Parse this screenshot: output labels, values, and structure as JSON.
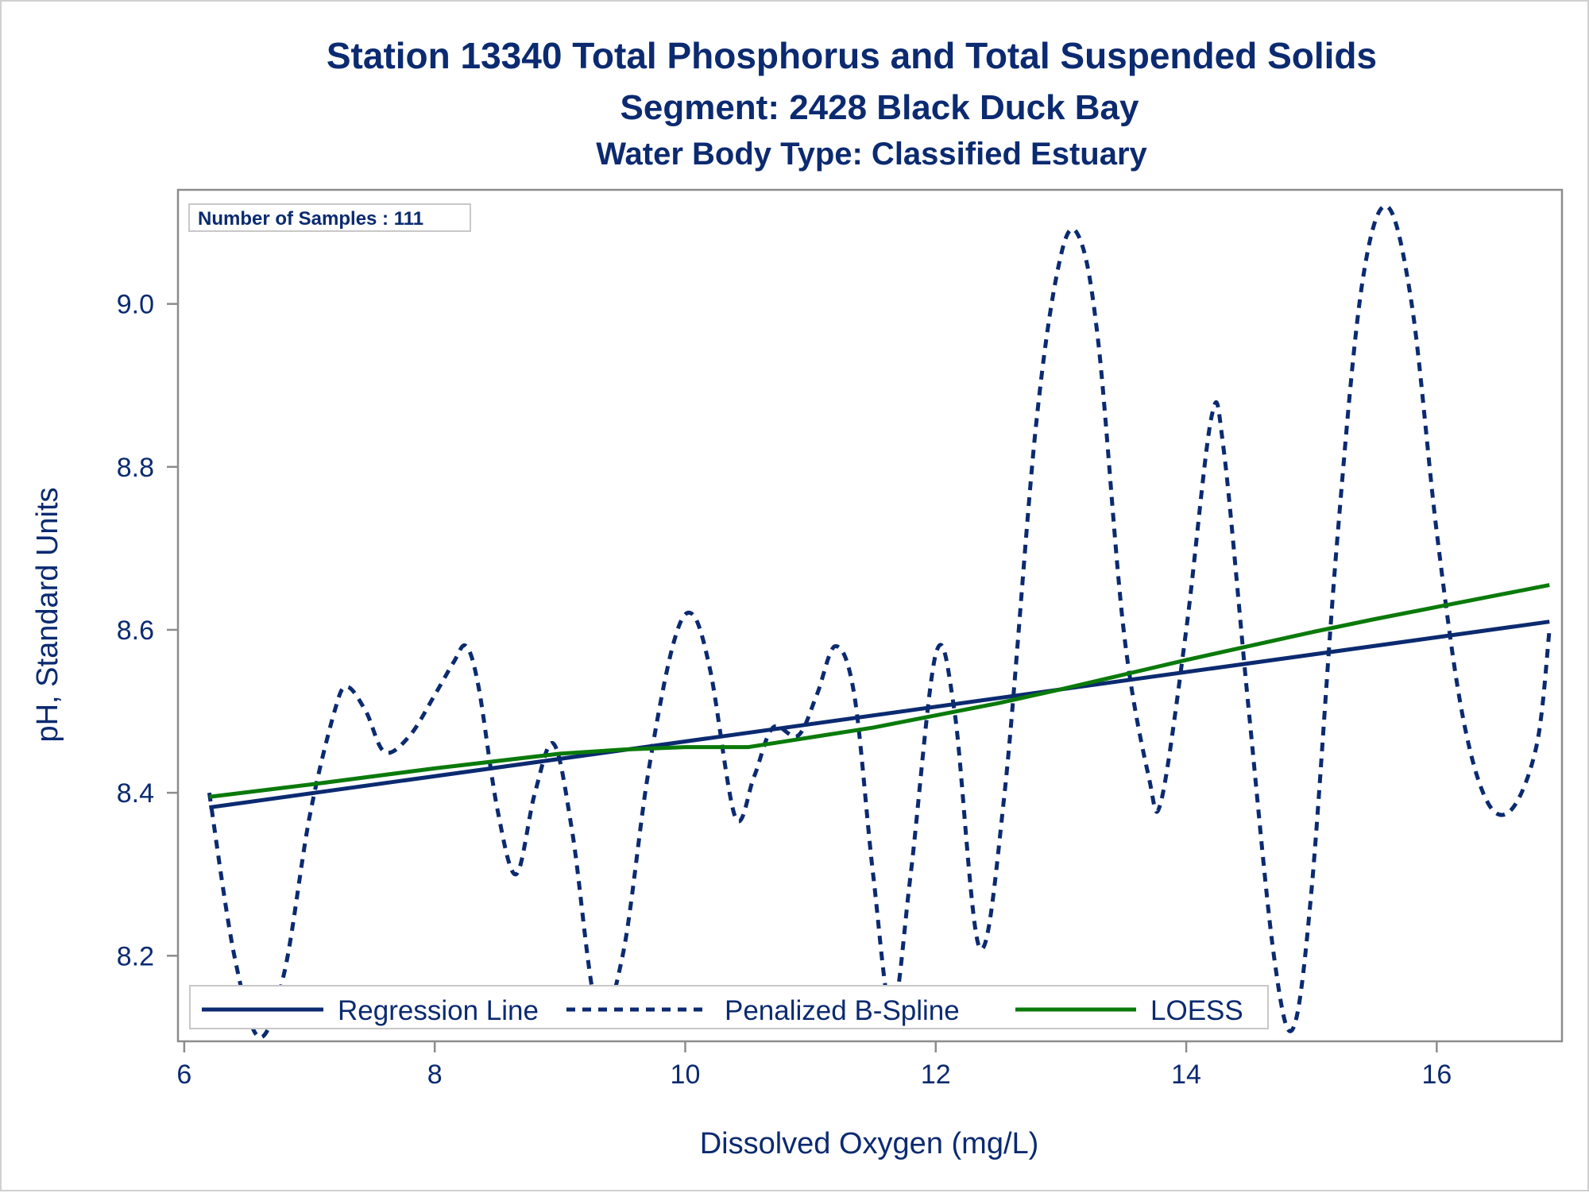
{
  "chart_data": {
    "type": "line",
    "title": "Station 13340  Total Phosphorus and Total Suspended Solids",
    "subtitle": "Segment: 2428  Black Duck Bay",
    "subtitle2": "Water Body Type: Classified Estuary",
    "xlabel": "Dissolved Oxygen (mg/L)",
    "ylabel": "pH, Standard Units",
    "xlim": [
      5.95,
      17.0
    ],
    "ylim": [
      8.095,
      9.14
    ],
    "x_ticks": [
      "6",
      "8",
      "10",
      "12",
      "14",
      "16"
    ],
    "y_ticks": [
      "8.2",
      "8.4",
      "8.6",
      "8.8",
      "9.0"
    ],
    "inset_label": "Number of Samples : 111",
    "legend_position": "bottom-left (inside)",
    "grid": false,
    "colors": {
      "text": "#0b2a70",
      "regression": "#0b2a70",
      "spline": "#0b2a70",
      "loess": "#0a7a0a",
      "frame": "#8c8c8c"
    },
    "series": [
      {
        "name": "Regression Line",
        "style": "solid",
        "x": [
          6.2,
          16.9
        ],
        "y": [
          8.382,
          8.61
        ]
      },
      {
        "name": "Penalized B-Spline",
        "style": "dashed",
        "x": [
          6.2,
          6.4,
          6.6,
          6.8,
          7.0,
          7.2,
          7.3,
          7.45,
          7.6,
          7.8,
          8.0,
          8.15,
          8.25,
          8.35,
          8.5,
          8.65,
          8.8,
          8.95,
          9.1,
          9.3,
          9.5,
          9.7,
          9.9,
          10.05,
          10.2,
          10.4,
          10.55,
          10.7,
          10.9,
          11.05,
          11.2,
          11.35,
          11.5,
          11.65,
          11.8,
          12.0,
          12.15,
          12.35,
          12.55,
          12.8,
          13.0,
          13.15,
          13.3,
          13.5,
          13.7,
          13.8,
          14.0,
          14.2,
          14.3,
          14.5,
          14.7,
          14.85,
          15.0,
          15.2,
          15.4,
          15.6,
          15.8,
          16.0,
          16.2,
          16.4,
          16.6,
          16.8,
          16.9
        ],
        "y": [
          8.4,
          8.2,
          8.1,
          8.18,
          8.37,
          8.5,
          8.53,
          8.5,
          8.45,
          8.47,
          8.52,
          8.56,
          8.58,
          8.53,
          8.38,
          8.3,
          8.4,
          8.46,
          8.35,
          8.13,
          8.2,
          8.42,
          8.58,
          8.62,
          8.55,
          8.37,
          8.42,
          8.48,
          8.47,
          8.52,
          8.58,
          8.52,
          8.3,
          8.13,
          8.3,
          8.57,
          8.5,
          8.21,
          8.4,
          8.85,
          9.06,
          9.08,
          8.95,
          8.6,
          8.42,
          8.39,
          8.6,
          8.86,
          8.82,
          8.5,
          8.2,
          8.11,
          8.28,
          8.7,
          9.02,
          9.12,
          9.0,
          8.72,
          8.5,
          8.39,
          8.38,
          8.46,
          8.6
        ]
      },
      {
        "name": "LOESS",
        "style": "solid",
        "x": [
          6.2,
          7.0,
          8.0,
          9.0,
          9.5,
          10.0,
          10.5,
          11.0,
          11.5,
          12.0,
          12.5,
          13.0,
          13.5,
          14.0,
          14.5,
          15.0,
          15.5,
          16.0,
          16.5,
          16.9
        ],
        "y": [
          8.395,
          8.41,
          8.43,
          8.448,
          8.453,
          8.456,
          8.456,
          8.468,
          8.48,
          8.495,
          8.51,
          8.527,
          8.545,
          8.563,
          8.58,
          8.597,
          8.613,
          8.628,
          8.643,
          8.655
        ]
      }
    ]
  }
}
